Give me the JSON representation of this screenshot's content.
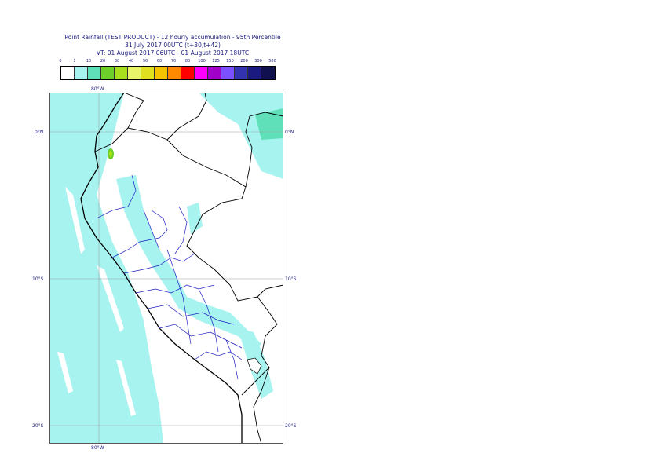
{
  "header": {
    "title_line1": "Point Rainfall (TEST PRODUCT) - 12 hourly accumulation - 95th Percentile",
    "title_line2": "31 July 2017 00UTC (t+30,t+42)",
    "title_line3": "VT: 01 August 2017 06UTC - 01 August 2017 18UTC"
  },
  "legend": {
    "labels": [
      "0",
      "1",
      "10",
      "20",
      "30",
      "40",
      "50",
      "60",
      "70",
      "80",
      "100",
      "125",
      "150",
      "200",
      "300",
      "500"
    ],
    "colors": [
      "#ffffff",
      "#a6f3f0",
      "#5fe0b8",
      "#6ccf2a",
      "#a8e01e",
      "#e8f56a",
      "#e0e020",
      "#f5c400",
      "#ff8a00",
      "#ff0000",
      "#ff00ff",
      "#a000c8",
      "#7a50ff",
      "#3333b0",
      "#1a1a80",
      "#101050"
    ]
  },
  "map": {
    "lon_top": "80°W",
    "lon_bottom": "80°W",
    "lat_labels": {
      "eq_left": "0°N",
      "eq_right": "0°N",
      "s10_left": "10°S",
      "s10_right": "10°S",
      "s20_left": "20°S",
      "s20_right": "20°S"
    },
    "colors": {
      "rain_light": "#a6f3f0",
      "rain_mid": "#5fe0b8",
      "coast": "#000000",
      "admin": "#2020c0",
      "grid": "#a0a0a0"
    }
  }
}
